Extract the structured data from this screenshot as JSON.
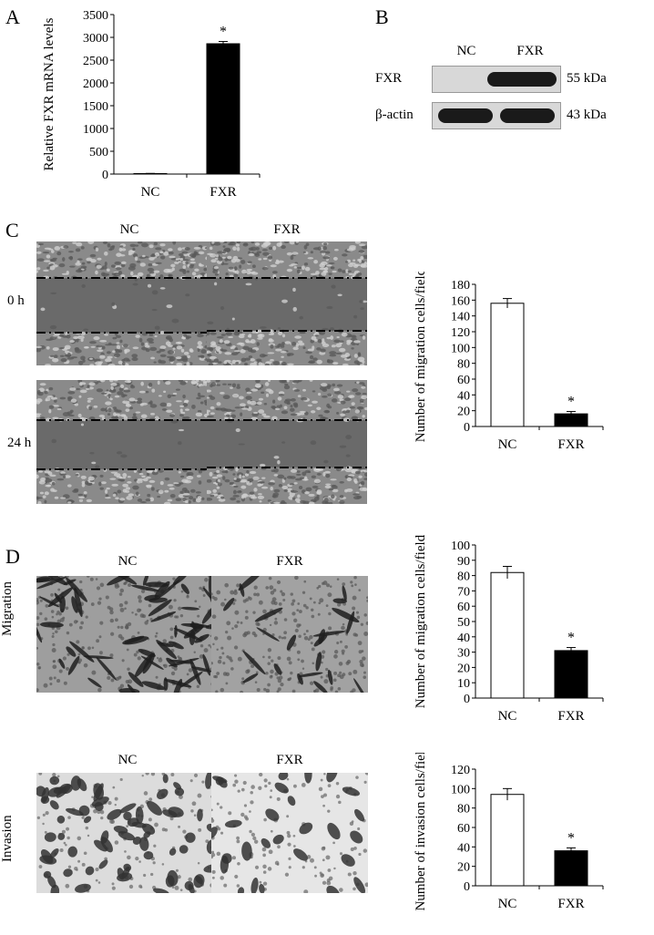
{
  "panels": {
    "A": {
      "letter": "A"
    },
    "B": {
      "letter": "B"
    },
    "C": {
      "letter": "C"
    },
    "D": {
      "letter": "D"
    }
  },
  "westernBlot": {
    "lanes": [
      "NC",
      "FXR"
    ],
    "rows": [
      {
        "protein": "FXR",
        "size": "55 kDa"
      },
      {
        "protein": "β-actin",
        "size": "43 kDa"
      }
    ]
  },
  "woundHealing": {
    "columns": [
      "NC",
      "FXR"
    ],
    "rows": [
      "0 h",
      "24 h"
    ]
  },
  "transwell": {
    "migration": {
      "row_label": "Migration",
      "columns": [
        "NC",
        "FXR"
      ]
    },
    "invasion": {
      "row_label": "Invasion",
      "columns": [
        "NC",
        "FXR"
      ]
    }
  },
  "colors": {
    "nc_bar": "#ffffff",
    "fxr_bar": "#000000",
    "micro_gray": "#6f6f6f"
  },
  "chart_data": [
    {
      "id": "A",
      "type": "bar",
      "categories": [
        "NC",
        "FXR"
      ],
      "values": [
        10,
        2860
      ],
      "errors": [
        5,
        50
      ],
      "significance": [
        "",
        "*"
      ],
      "ylabel": "Relative FXR mRNA levels",
      "ylim": [
        0,
        3500
      ],
      "yticks": [
        "0",
        "500",
        "1000",
        "1500",
        "2000",
        "2500",
        "3000",
        "3500"
      ]
    },
    {
      "id": "C",
      "type": "bar",
      "categories": [
        "NC",
        "FXR"
      ],
      "values": [
        156,
        16
      ],
      "errors": [
        6,
        3
      ],
      "significance": [
        "",
        "*"
      ],
      "ylabel": "Number of migration cells/field",
      "ylim": [
        0,
        180
      ],
      "yticks": [
        "0",
        "20",
        "40",
        "60",
        "80",
        "100",
        "120",
        "140",
        "160",
        "180"
      ]
    },
    {
      "id": "D-migration",
      "type": "bar",
      "categories": [
        "NC",
        "FXR"
      ],
      "values": [
        82,
        31
      ],
      "errors": [
        4,
        2
      ],
      "significance": [
        "",
        "*"
      ],
      "ylabel": "Number of migration cells/field",
      "ylim": [
        0,
        100
      ],
      "yticks": [
        "0",
        "10",
        "20",
        "30",
        "40",
        "50",
        "60",
        "70",
        "80",
        "90",
        "100"
      ]
    },
    {
      "id": "D-invasion",
      "type": "bar",
      "categories": [
        "NC",
        "FXR"
      ],
      "values": [
        94,
        36
      ],
      "errors": [
        6,
        3
      ],
      "significance": [
        "",
        "*"
      ],
      "ylabel": "Number of invasion cells/field",
      "ylim": [
        0,
        120
      ],
      "yticks": [
        "0",
        "20",
        "40",
        "60",
        "80",
        "100",
        "120"
      ]
    }
  ]
}
